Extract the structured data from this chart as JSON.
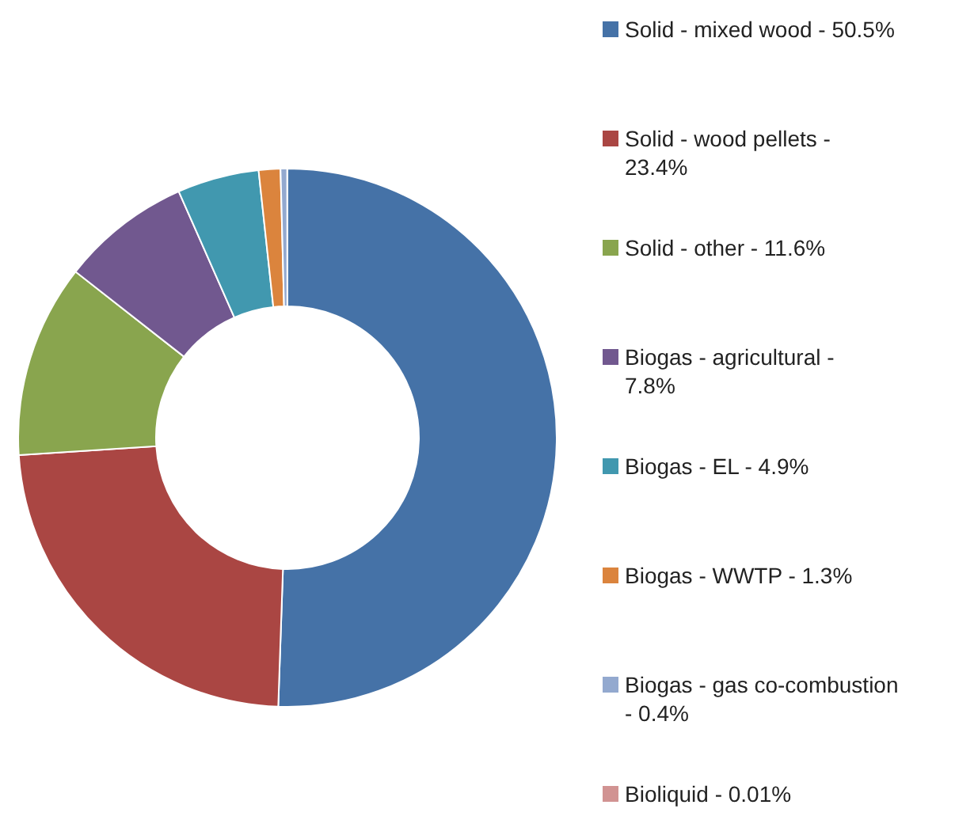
{
  "chart_data": {
    "type": "donut",
    "categories": [
      "Solid - mixed wood - 50.5%",
      "Solid - wood pellets - 23.4%",
      "Solid - other - 11.6%",
      "Biogas - agricultural - 7.8%",
      "Biogas - EL - 4.9%",
      "Biogas - WWTP - 1.3%",
      "Biogas - gas co-combustion - 0.4%",
      "Bioliquid - 0.01%"
    ],
    "values": [
      50.5,
      23.4,
      11.6,
      7.8,
      4.9,
      1.3,
      0.4,
      0.01
    ],
    "colors": [
      "#4572a7",
      "#aa4643",
      "#89a54e",
      "#71588f",
      "#4198af",
      "#db843d",
      "#93a9cf",
      "#d19392"
    ],
    "legend": "right"
  }
}
